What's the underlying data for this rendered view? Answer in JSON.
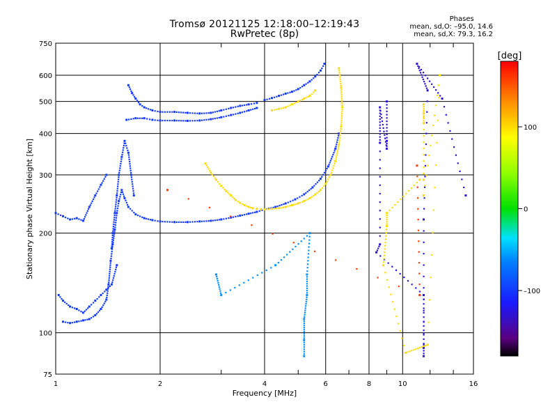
{
  "header": {
    "title": "Tromsø 20121125 12:18:00–12:19:43",
    "subtitle": "RwPretec (8p)"
  },
  "phases_box": {
    "heading": "Phases",
    "line1": "mean, sd,O: –95.0, 14.6",
    "line2": "mean, sd,X:  79.3, 16.2"
  },
  "colorbar": {
    "unit_label": "[deg]",
    "ticks": [
      {
        "value": 100,
        "label": "100"
      },
      {
        "value": 0,
        "label": "0"
      },
      {
        "value": -100,
        "label": "–100"
      }
    ],
    "range": [
      -180,
      180
    ]
  },
  "chart_data": {
    "type": "scatter",
    "xlabel": "Frequency [MHz]",
    "ylabel": "Stationary phase Virtual Height [km]",
    "xscale": "log",
    "yscale": "log",
    "xlim": [
      1,
      16
    ],
    "ylim": [
      75,
      750
    ],
    "x_ticks": [
      {
        "v": 1,
        "label": "1"
      },
      {
        "v": 2,
        "label": "2"
      },
      {
        "v": 4,
        "label": "4"
      },
      {
        "v": 6,
        "label": "6"
      },
      {
        "v": 8,
        "label": "8"
      },
      {
        "v": 10,
        "label": "10"
      },
      {
        "v": 16,
        "label": "16"
      }
    ],
    "y_ticks": [
      {
        "v": 75,
        "label": "75"
      },
      {
        "v": 100,
        "label": "100"
      },
      {
        "v": 200,
        "label": "200"
      },
      {
        "v": 300,
        "label": "300"
      },
      {
        "v": 400,
        "label": "400"
      },
      {
        "v": 500,
        "label": "500"
      },
      {
        "v": 600,
        "label": "600"
      },
      {
        "v": 750,
        "label": "750"
      }
    ],
    "grid": true,
    "series": [
      {
        "phase": -100,
        "points": [
          [
            1.05,
            108
          ],
          [
            1.1,
            107
          ],
          [
            1.15,
            108
          ],
          [
            1.2,
            109
          ],
          [
            1.25,
            110
          ],
          [
            1.3,
            113
          ],
          [
            1.35,
            118
          ],
          [
            1.4,
            126
          ],
          [
            1.42,
            140
          ],
          [
            1.44,
            165
          ],
          [
            1.46,
            185
          ],
          [
            1.48,
            205
          ],
          [
            1.5,
            230
          ],
          [
            1.52,
            250
          ],
          [
            1.55,
            270
          ],
          [
            1.58,
            255
          ],
          [
            1.62,
            240
          ],
          [
            1.7,
            228
          ],
          [
            1.8,
            222
          ],
          [
            1.9,
            219
          ],
          [
            2.0,
            217
          ],
          [
            2.2,
            216
          ],
          [
            2.4,
            216
          ],
          [
            2.6,
            217
          ],
          [
            2.8,
            218
          ],
          [
            3.0,
            220
          ],
          [
            3.2,
            223
          ],
          [
            3.4,
            226
          ],
          [
            3.6,
            229
          ],
          [
            3.8,
            232
          ],
          [
            4.0,
            236
          ],
          [
            4.3,
            240
          ],
          [
            4.6,
            246
          ],
          [
            4.9,
            253
          ],
          [
            5.2,
            262
          ],
          [
            5.5,
            275
          ],
          [
            5.8,
            292
          ],
          [
            6.1,
            318
          ],
          [
            6.4,
            360
          ],
          [
            6.55,
            400
          ]
        ]
      },
      {
        "phase": -100,
        "points": [
          [
            1.6,
            440
          ],
          [
            1.7,
            445
          ],
          [
            1.8,
            445
          ],
          [
            1.9,
            440
          ],
          [
            2.0,
            438
          ],
          [
            2.2,
            438
          ],
          [
            2.4,
            437
          ],
          [
            2.6,
            438
          ],
          [
            2.8,
            442
          ],
          [
            3.0,
            448
          ],
          [
            3.2,
            455
          ],
          [
            3.4,
            462
          ],
          [
            3.6,
            470
          ],
          [
            3.8,
            478
          ]
        ]
      },
      {
        "phase": -100,
        "points": [
          [
            1.62,
            560
          ],
          [
            1.66,
            530
          ],
          [
            1.7,
            510
          ],
          [
            1.75,
            490
          ],
          [
            1.8,
            480
          ],
          [
            1.9,
            470
          ],
          [
            2.0,
            465
          ],
          [
            2.2,
            465
          ],
          [
            2.4,
            462
          ],
          [
            2.6,
            460
          ],
          [
            2.8,
            462
          ],
          [
            3.0,
            470
          ],
          [
            3.2,
            478
          ],
          [
            3.4,
            485
          ],
          [
            3.6,
            490
          ],
          [
            3.8,
            495
          ]
        ]
      },
      {
        "phase": -100,
        "points": [
          [
            4.0,
            505
          ],
          [
            4.2,
            512
          ],
          [
            4.4,
            520
          ],
          [
            4.6,
            528
          ],
          [
            4.8,
            535
          ],
          [
            5.0,
            545
          ],
          [
            5.2,
            560
          ],
          [
            5.4,
            575
          ],
          [
            5.6,
            595
          ],
          [
            5.8,
            620
          ],
          [
            5.95,
            650
          ]
        ]
      },
      {
        "phase": -100,
        "points": [
          [
            1.45,
            180
          ],
          [
            1.46,
            200
          ],
          [
            1.48,
            230
          ],
          [
            1.5,
            260
          ],
          [
            1.52,
            300
          ],
          [
            1.55,
            340
          ],
          [
            1.58,
            380
          ],
          [
            1.62,
            350
          ],
          [
            1.65,
            300
          ],
          [
            1.68,
            260
          ]
        ]
      },
      {
        "phase": -100,
        "points": [
          [
            1.02,
            130
          ],
          [
            1.05,
            125
          ],
          [
            1.1,
            120
          ],
          [
            1.15,
            118
          ],
          [
            1.2,
            115
          ],
          [
            1.25,
            120
          ],
          [
            1.3,
            125
          ],
          [
            1.35,
            130
          ],
          [
            1.4,
            135
          ],
          [
            1.45,
            140
          ],
          [
            1.5,
            160
          ]
        ]
      },
      {
        "phase": -100,
        "points": [
          [
            1.0,
            230
          ],
          [
            1.05,
            225
          ],
          [
            1.1,
            220
          ],
          [
            1.15,
            222
          ],
          [
            1.2,
            218
          ],
          [
            1.25,
            240
          ],
          [
            1.3,
            260
          ],
          [
            1.35,
            280
          ],
          [
            1.4,
            300
          ]
        ]
      },
      {
        "phase": 100,
        "points": [
          [
            2.7,
            325
          ],
          [
            2.8,
            305
          ],
          [
            2.9,
            290
          ],
          [
            3.0,
            278
          ],
          [
            3.1,
            268
          ],
          [
            3.2,
            260
          ],
          [
            3.3,
            252
          ],
          [
            3.4,
            247
          ],
          [
            3.5,
            243
          ],
          [
            3.6,
            240
          ],
          [
            3.7,
            238
          ],
          [
            3.8,
            237
          ],
          [
            3.9,
            236
          ],
          [
            4.0,
            236
          ],
          [
            4.2,
            237
          ],
          [
            4.4,
            238
          ],
          [
            4.6,
            240
          ],
          [
            4.8,
            243
          ],
          [
            5.0,
            246
          ],
          [
            5.2,
            250
          ],
          [
            5.4,
            255
          ],
          [
            5.6,
            262
          ],
          [
            5.8,
            270
          ],
          [
            6.0,
            282
          ],
          [
            6.2,
            300
          ],
          [
            6.4,
            330
          ],
          [
            6.55,
            370
          ],
          [
            6.65,
            420
          ],
          [
            6.7,
            480
          ],
          [
            6.65,
            550
          ],
          [
            6.55,
            630
          ]
        ]
      },
      {
        "phase": 100,
        "points": [
          [
            4.2,
            470
          ],
          [
            4.4,
            475
          ],
          [
            4.6,
            480
          ],
          [
            4.8,
            490
          ],
          [
            5.0,
            500
          ],
          [
            5.2,
            510
          ],
          [
            5.4,
            520
          ],
          [
            5.6,
            540
          ]
        ]
      },
      {
        "phase": -60,
        "points": [
          [
            5.2,
            85
          ],
          [
            5.2,
            95
          ],
          [
            5.2,
            110
          ],
          [
            5.3,
            130
          ],
          [
            5.3,
            150
          ],
          [
            5.4,
            200
          ],
          [
            4.3,
            160
          ],
          [
            3.0,
            130
          ],
          [
            2.9,
            150
          ]
        ]
      },
      {
        "phase": -130,
        "points": [
          [
            9.0,
            500
          ],
          [
            9.0,
            380
          ],
          [
            9.0,
            360
          ],
          [
            8.6,
            480
          ],
          [
            8.6,
            375
          ],
          [
            8.6,
            185
          ],
          [
            8.4,
            175
          ],
          [
            11.5,
            130
          ],
          [
            11.5,
            90
          ],
          [
            11.5,
            85
          ],
          [
            11.5,
            220
          ],
          [
            11.8,
            540
          ],
          [
            11.0,
            650
          ],
          [
            13.0,
            510
          ],
          [
            15.2,
            260
          ]
        ]
      },
      {
        "phase": 100,
        "points": [
          [
            11.5,
            430
          ],
          [
            11.5,
            460
          ],
          [
            11.5,
            490
          ],
          [
            11.5,
            290
          ],
          [
            11.2,
            290
          ],
          [
            9.0,
            230
          ],
          [
            9.0,
            210
          ],
          [
            8.8,
            160
          ],
          [
            10.2,
            87
          ],
          [
            11.8,
            92
          ],
          [
            12.8,
            600
          ],
          [
            11.5,
            260
          ]
        ]
      },
      {
        "phase": 160,
        "points": [
          [
            11.0,
            320
          ],
          [
            11.2,
            130
          ],
          [
            2.1,
            270
          ]
        ]
      }
    ]
  }
}
